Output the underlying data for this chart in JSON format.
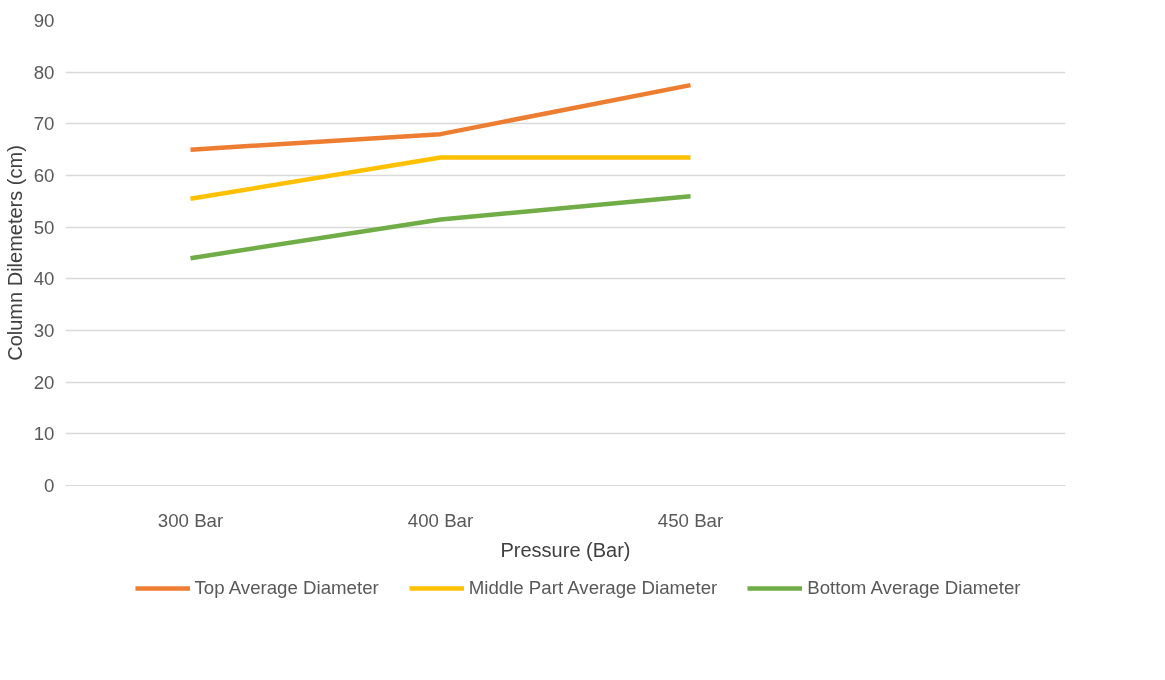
{
  "chart_data": {
    "type": "line",
    "xlabel": "Pressure (Bar)",
    "ylabel": "Column Dilemeters (cm)",
    "categories": [
      "300 Bar",
      "400 Bar",
      "450 Bar",
      null
    ],
    "series": [
      {
        "name": "Top Average Diameter",
        "color": "#ed7d31",
        "values": [
          65,
          68,
          77.5,
          null
        ]
      },
      {
        "name": "Middle Part Average Diameter",
        "color": "#ffc000",
        "values": [
          55.5,
          63.5,
          63.5,
          null
        ]
      },
      {
        "name": "Bottom Average Diameter",
        "color": "#70ad47",
        "values": [
          44,
          51.5,
          56,
          null
        ]
      }
    ],
    "ylim": [
      0,
      90
    ],
    "yticks": [
      0,
      10,
      20,
      30,
      40,
      50,
      60,
      70,
      80,
      90
    ],
    "grid": "y",
    "legend": "bottom",
    "marker": "none",
    "line_style": "solid"
  }
}
